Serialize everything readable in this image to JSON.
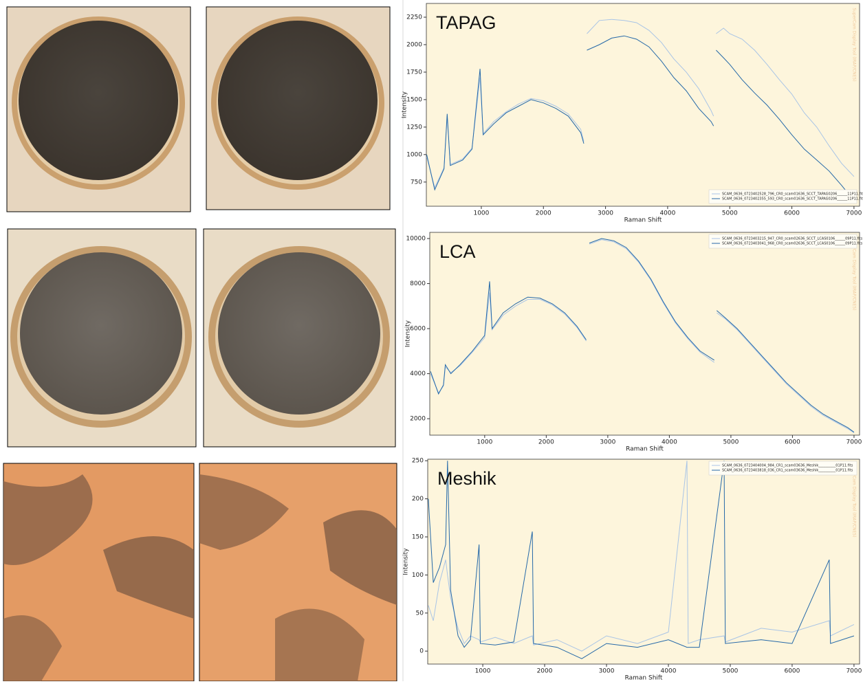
{
  "chart_data": [
    {
      "type": "line",
      "title": "TAPAG",
      "xlabel": "Raman Shift",
      "ylabel": "Intensity",
      "watermark": "SuperCam Display Tool (IRAP/CNES)",
      "legend": "lower right",
      "xlim": [
        115,
        7090
      ],
      "ylim": [
        530,
        2375
      ],
      "xticks": [
        1000,
        2000,
        3000,
        4000,
        5000,
        6000,
        7000
      ],
      "yticks": [
        750,
        1000,
        1250,
        1500,
        1750,
        2000,
        2250
      ],
      "x": [
        120,
        250,
        400,
        450,
        500,
        700,
        850,
        980,
        1030,
        1200,
        1400,
        1600,
        1800,
        2000,
        2200,
        2400,
        2600,
        2650,
        2675,
        2700,
        2900,
        3100,
        3300,
        3500,
        3700,
        3900,
        4100,
        4300,
        4500,
        4700,
        4740,
        4760,
        4780,
        4900,
        5000,
        5200,
        5400,
        5600,
        5800,
        6000,
        6200,
        6400,
        6600,
        6800,
        7000
      ],
      "series": [
        {
          "name": "SCAM_0636_0723402528_796_CR0_scam01636_SCCT_TAPAG0206______11P11.fits",
          "color": "#a8c4e6",
          "values": [
            980,
            700,
            880,
            1340,
            910,
            960,
            1060,
            1700,
            1190,
            1300,
            1390,
            1460,
            1510,
            1490,
            1440,
            1370,
            1230,
            1120,
            null,
            2100,
            2220,
            2230,
            2220,
            2200,
            2130,
            2020,
            1870,
            1750,
            1600,
            1400,
            1350,
            null,
            2100,
            2150,
            2100,
            2050,
            1950,
            1820,
            1680,
            1550,
            1380,
            1250,
            1080,
            920,
            800
          ]
        },
        {
          "name": "SCAM_0636_0723402355_593_CR0_scam01636_SCCT_TAPAG0206______11P11.fits",
          "color": "#2468a8",
          "values": [
            1000,
            680,
            870,
            1370,
            900,
            950,
            1050,
            1780,
            1180,
            1280,
            1380,
            1440,
            1500,
            1470,
            1420,
            1350,
            1200,
            1100,
            null,
            1950,
            2000,
            2060,
            2080,
            2050,
            1980,
            1850,
            1700,
            1580,
            1420,
            1300,
            1260,
            null,
            1950,
            1880,
            1820,
            1680,
            1560,
            1450,
            1320,
            1180,
            1050,
            950,
            850,
            720,
            580
          ]
        }
      ]
    },
    {
      "type": "line",
      "title": "LCA",
      "xlabel": "Raman Shift",
      "ylabel": "Intensity",
      "watermark": "SuperCam Display Tool (IRAP/CNES)",
      "legend": "upper right",
      "xlim": [
        108,
        7090
      ],
      "ylim": [
        1270,
        10275
      ],
      "xticks": [
        1000,
        2000,
        3000,
        4000,
        5000,
        6000,
        7000
      ],
      "yticks": [
        2000,
        4000,
        6000,
        8000,
        10000
      ],
      "x": [
        120,
        250,
        330,
        360,
        450,
        600,
        800,
        1000,
        1080,
        1120,
        1300,
        1500,
        1700,
        1900,
        2100,
        2300,
        2500,
        2650,
        2675,
        2700,
        2900,
        3100,
        3300,
        3500,
        3700,
        3900,
        4100,
        4300,
        4500,
        4730,
        4750,
        4770,
        4900,
        5100,
        5300,
        5500,
        5700,
        5900,
        6100,
        6300,
        6500,
        6700,
        6900,
        7000
      ],
      "series": [
        {
          "name": "SCAM_0636_0723403215_947_CR0_scam02636_SCCT_LCAS0106______09P11.fits",
          "color": "#a8c4e6",
          "values": [
            4000,
            3150,
            3450,
            4300,
            4050,
            4350,
            4950,
            5600,
            7600,
            5950,
            6600,
            7000,
            7300,
            7300,
            7050,
            6650,
            6050,
            5450,
            null,
            9750,
            9950,
            9850,
            9550,
            8950,
            8150,
            7150,
            6250,
            5550,
            4950,
            4500,
            null,
            6700,
            6450,
            5950,
            5350,
            4750,
            4150,
            3550,
            3050,
            2550,
            2150,
            1850,
            1550,
            1380
          ]
        },
        {
          "name": "SCAM_0636_0723403041_968_CR0_scam02636_SCCT_LCAS0106______09P11.fits",
          "color": "#2468a8",
          "values": [
            4100,
            3100,
            3500,
            4400,
            4000,
            4400,
            5000,
            5700,
            8100,
            6000,
            6700,
            7100,
            7400,
            7350,
            7100,
            6700,
            6100,
            5500,
            null,
            9800,
            10000,
            9900,
            9600,
            9000,
            8200,
            7200,
            6300,
            5600,
            5000,
            4600,
            null,
            6800,
            6500,
            6000,
            5400,
            4800,
            4200,
            3600,
            3100,
            2600,
            2200,
            1900,
            1600,
            1400
          ]
        }
      ]
    },
    {
      "type": "line",
      "title": "Meshik",
      "xlabel": "Raman Shift",
      "ylabel": "Intensity",
      "watermark": "SuperCam Display Tool (IRAP/CNES)",
      "legend": "upper right",
      "xlim": [
        110,
        7090
      ],
      "ylim": [
        -17,
        252
      ],
      "xticks": [
        1000,
        2000,
        3000,
        4000,
        5000,
        6000,
        7000
      ],
      "yticks": [
        0,
        50,
        100,
        150,
        200,
        250
      ],
      "x": [
        120,
        200,
        300,
        400,
        430,
        480,
        600,
        700,
        800,
        940,
        960,
        1200,
        1500,
        1800,
        1820,
        2200,
        2600,
        3000,
        3500,
        4000,
        4300,
        4320,
        4500,
        4900,
        4920,
        5500,
        6000,
        6600,
        6620,
        7000
      ],
      "series": [
        {
          "name": "SCAM_0636_0723404004_984_CR1_scam03636_Meshik__________01P11.fits",
          "color": "#a8c4e6",
          "values": [
            60,
            40,
            90,
            120,
            100,
            70,
            30,
            10,
            20,
            15,
            12,
            18,
            10,
            20,
            8,
            15,
            0,
            20,
            10,
            25,
            250,
            10,
            15,
            20,
            12,
            30,
            25,
            40,
            20,
            35
          ]
        },
        {
          "name": "SCAM_0636_0723403818_036_CR1_scam03636_Meshik__________01P11.fits",
          "color": "#2468a8",
          "values": [
            200,
            90,
            110,
            140,
            250,
            80,
            20,
            5,
            15,
            140,
            10,
            8,
            12,
            157,
            10,
            5,
            -10,
            10,
            5,
            15,
            5,
            5,
            5,
            250,
            10,
            15,
            10,
            120,
            10,
            20
          ]
        }
      ]
    }
  ]
}
